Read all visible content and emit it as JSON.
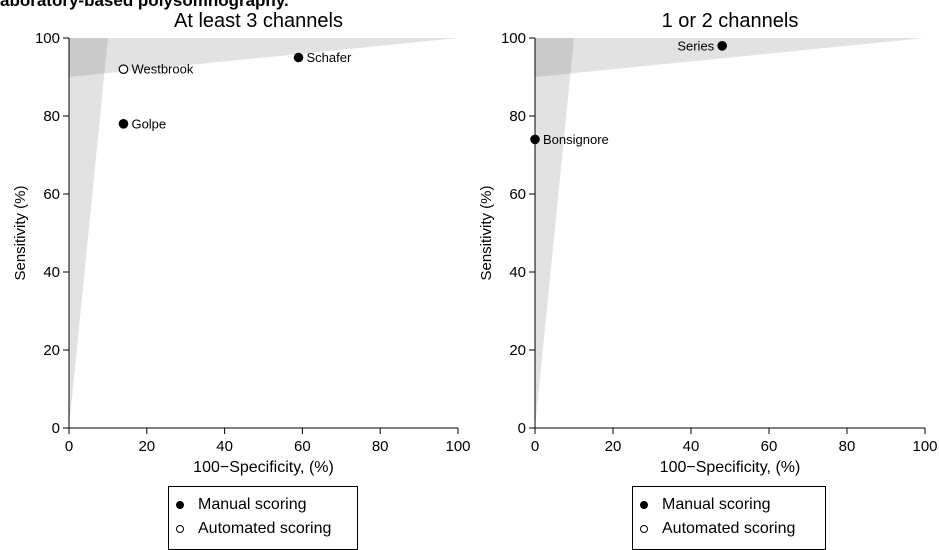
{
  "figure": {
    "title": "aboratory-based polysomnography."
  },
  "chart_data": [
    {
      "type": "scatter",
      "title": "At least 3 channels",
      "xlabel": "100−Specificity, (%)",
      "ylabel": "Sensitivity (%)",
      "xlim": [
        0,
        100
      ],
      "ylim": [
        0,
        100
      ],
      "xticks": [
        "0",
        "20",
        "40",
        "60",
        "80",
        "100"
      ],
      "yticks": [
        "0",
        "20",
        "40",
        "60",
        "80",
        "100"
      ],
      "grid": false,
      "shaded_regions": [
        {
          "name": "",
          "polygon": [
            [
              0,
              90
            ],
            [
              100,
              100
            ],
            [
              0,
              100
            ]
          ]
        },
        {
          "name": "",
          "polygon": [
            [
              0,
              0
            ],
            [
              10,
              100
            ],
            [
              0,
              100
            ]
          ]
        }
      ],
      "series": [
        {
          "name": "Manual scoring",
          "marker": "filled",
          "points": [
            {
              "label": "Schafer",
              "x": 59,
              "y": 95
            },
            {
              "label": "Golpe",
              "x": 14,
              "y": 78
            }
          ]
        },
        {
          "name": "Automated scoring",
          "marker": "open",
          "points": [
            {
              "label": "Westbrook",
              "x": 14,
              "y": 92
            }
          ]
        }
      ],
      "legend": [
        "Manual scoring",
        "Automated scoring"
      ],
      "legend_placement": "bottom"
    },
    {
      "type": "scatter",
      "title": "1 or 2 channels",
      "xlabel": "100−Specificity, (%)",
      "ylabel": "Sensitivity (%)",
      "xlim": [
        0,
        100
      ],
      "ylim": [
        0,
        100
      ],
      "xticks": [
        "0",
        "20",
        "40",
        "60",
        "80",
        "100"
      ],
      "yticks": [
        "0",
        "20",
        "40",
        "60",
        "80",
        "100"
      ],
      "grid": false,
      "shaded_regions": [
        {
          "name": "",
          "polygon": [
            [
              0,
              90
            ],
            [
              100,
              100
            ],
            [
              0,
              100
            ]
          ]
        },
        {
          "name": "",
          "polygon": [
            [
              0,
              0
            ],
            [
              10,
              100
            ],
            [
              0,
              100
            ]
          ]
        }
      ],
      "series": [
        {
          "name": "Manual scoring",
          "marker": "filled",
          "points": [
            {
              "label": "Series",
              "x": 48,
              "y": 98
            },
            {
              "label": "Bonsignore",
              "x": 0,
              "y": 74
            }
          ]
        },
        {
          "name": "Automated scoring",
          "marker": "open",
          "points": []
        }
      ],
      "legend": [
        "Manual scoring",
        "Automated scoring"
      ],
      "legend_placement": "bottom"
    }
  ]
}
